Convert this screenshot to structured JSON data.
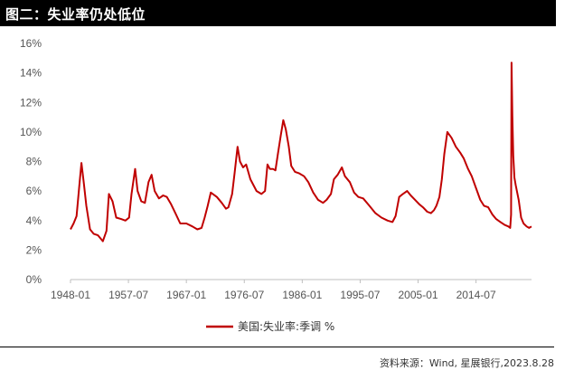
{
  "header": {
    "title": "图二：失业率仍处低位"
  },
  "footer": {
    "source": "资料来源：Wind, 星展银行,2023.8.28"
  },
  "colors": {
    "series": "#c00000",
    "header_bg": "#000000",
    "axis": "#bfbfbf"
  },
  "chart_data": {
    "type": "line",
    "title": "",
    "xlabel": "",
    "ylabel": "",
    "x_ticks": [
      "1948-01",
      "1957-07",
      "1967-01",
      "1976-07",
      "1986-01",
      "1995-07",
      "2005-01",
      "2014-07"
    ],
    "y_ticks": [
      "0%",
      "2%",
      "4%",
      "6%",
      "8%",
      "10%",
      "12%",
      "14%",
      "16%"
    ],
    "xlim": [
      1948.0,
      2023.6
    ],
    "ylim": [
      0,
      16
    ],
    "grid": false,
    "legend_position": "bottom",
    "series": [
      {
        "name": "美国:失业率:季调 %",
        "x": [
          1948.0,
          1948.5,
          1949.0,
          1949.5,
          1949.8,
          1950.2,
          1950.6,
          1951.2,
          1951.8,
          1952.5,
          1953.3,
          1953.9,
          1954.3,
          1954.9,
          1955.5,
          1956.3,
          1957.0,
          1957.6,
          1958.0,
          1958.6,
          1959.0,
          1959.6,
          1960.2,
          1960.8,
          1961.3,
          1961.8,
          1962.5,
          1963.2,
          1963.8,
          1964.5,
          1965.2,
          1966.0,
          1967.0,
          1968.0,
          1968.8,
          1969.5,
          1970.0,
          1970.5,
          1971.0,
          1972.0,
          1972.8,
          1973.5,
          1973.9,
          1974.5,
          1974.9,
          1975.4,
          1975.8,
          1976.3,
          1976.8,
          1977.5,
          1978.5,
          1979.3,
          1979.9,
          1980.3,
          1980.7,
          1981.2,
          1981.6,
          1982.0,
          1982.5,
          1982.9,
          1983.3,
          1983.8,
          1984.2,
          1984.8,
          1985.5,
          1986.3,
          1987.0,
          1987.8,
          1988.6,
          1989.4,
          1990.0,
          1990.7,
          1991.2,
          1991.8,
          1992.5,
          1993.0,
          1993.8,
          1994.5,
          1995.2,
          1996.0,
          1997.0,
          1998.0,
          1999.0,
          2000.0,
          2000.8,
          2001.3,
          2001.9,
          2002.5,
          2003.2,
          2003.8,
          2004.5,
          2005.2,
          2005.8,
          2006.5,
          2007.1,
          2007.6,
          2008.0,
          2008.5,
          2008.9,
          2009.3,
          2009.8,
          2010.5,
          2011.2,
          2011.9,
          2012.5,
          2013.2,
          2013.8,
          2014.5,
          2015.2,
          2015.8,
          2016.5,
          2017.2,
          2017.8,
          2018.5,
          2019.2,
          2019.8,
          2020.1,
          2020.25,
          2020.33,
          2020.45,
          2020.6,
          2020.8,
          2021.0,
          2021.5,
          2021.9,
          2022.3,
          2022.8,
          2023.2,
          2023.6
        ],
        "y": [
          3.4,
          3.8,
          4.3,
          6.6,
          7.9,
          6.5,
          5.0,
          3.4,
          3.1,
          3.0,
          2.6,
          3.3,
          5.8,
          5.3,
          4.2,
          4.1,
          4.0,
          4.2,
          5.8,
          7.5,
          6.0,
          5.3,
          5.2,
          6.6,
          7.1,
          6.0,
          5.5,
          5.7,
          5.6,
          5.1,
          4.5,
          3.8,
          3.8,
          3.6,
          3.4,
          3.5,
          4.2,
          5.0,
          5.9,
          5.6,
          5.2,
          4.8,
          4.9,
          5.8,
          7.2,
          9.0,
          8.0,
          7.6,
          7.8,
          6.8,
          6.0,
          5.8,
          6.0,
          7.8,
          7.5,
          7.5,
          7.4,
          8.5,
          9.8,
          10.8,
          10.2,
          9.0,
          7.7,
          7.3,
          7.2,
          7.0,
          6.6,
          5.9,
          5.4,
          5.2,
          5.4,
          5.8,
          6.8,
          7.1,
          7.6,
          7.0,
          6.6,
          5.9,
          5.6,
          5.5,
          5.0,
          4.5,
          4.2,
          4.0,
          3.9,
          4.3,
          5.6,
          5.8,
          6.0,
          5.7,
          5.4,
          5.1,
          4.9,
          4.6,
          4.5,
          4.7,
          5.0,
          5.6,
          6.8,
          8.5,
          10.0,
          9.6,
          9.0,
          8.6,
          8.2,
          7.5,
          7.0,
          6.2,
          5.4,
          5.0,
          4.9,
          4.4,
          4.1,
          3.9,
          3.7,
          3.6,
          3.5,
          4.4,
          14.7,
          11.1,
          8.4,
          6.9,
          6.4,
          5.4,
          4.2,
          3.8,
          3.6,
          3.5,
          3.6
        ]
      }
    ]
  }
}
